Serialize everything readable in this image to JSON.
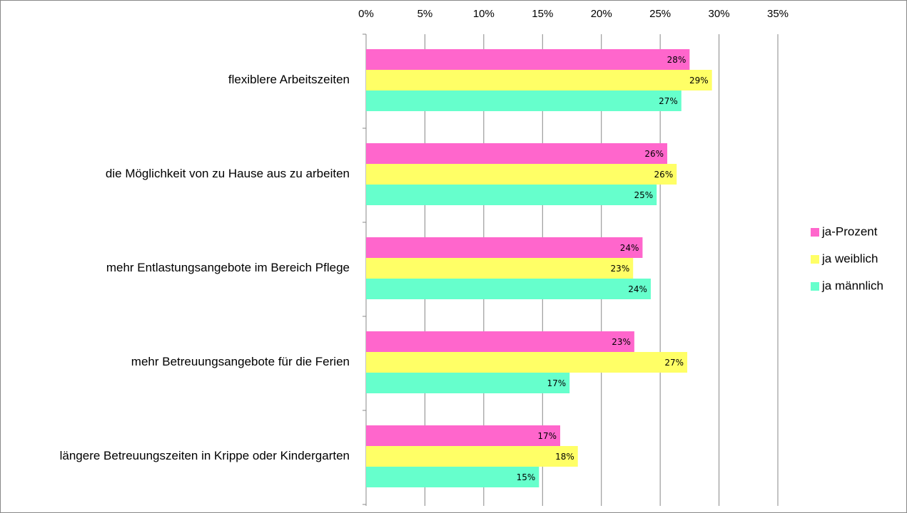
{
  "chart_data": {
    "type": "hbar",
    "categories": [
      "flexiblere Arbeitszeiten",
      "die Möglichkeit von zu Hause aus zu arbeiten",
      "mehr Entlastungsangebote im Bereich Pflege",
      "mehr Betreuungsangebote für die Ferien",
      "längere Betreuungszeiten in Krippe oder Kindergarten"
    ],
    "series": [
      {
        "name": "ja-Prozent",
        "color": "#ff66cc",
        "values": [
          27.5,
          25.6,
          23.5,
          22.8,
          16.5
        ],
        "value_labels": [
          "28%",
          "26%",
          "24%",
          "23%",
          "17%"
        ]
      },
      {
        "name": "ja weiblich",
        "color": "#ffff66",
        "values": [
          29.4,
          26.4,
          22.7,
          27.3,
          18.0
        ],
        "value_labels": [
          "29%",
          "26%",
          "23%",
          "27%",
          "18%"
        ]
      },
      {
        "name": "ja männlich",
        "color": "#66ffcc",
        "values": [
          26.8,
          24.7,
          24.2,
          17.3,
          14.7
        ],
        "value_labels": [
          "27%",
          "25%",
          "24%",
          "17%",
          "15%"
        ]
      }
    ],
    "xlim": [
      0,
      35
    ],
    "xticks": [
      {
        "value": 0,
        "label": "0%"
      },
      {
        "value": 5,
        "label": "5%"
      },
      {
        "value": 10,
        "label": "10%"
      },
      {
        "value": 15,
        "label": "15%"
      },
      {
        "value": 20,
        "label": "20%"
      },
      {
        "value": 25,
        "label": "25%"
      },
      {
        "value": 30,
        "label": "30%"
      },
      {
        "value": 35,
        "label": "35%"
      }
    ],
    "grid": true,
    "legend": "right"
  }
}
